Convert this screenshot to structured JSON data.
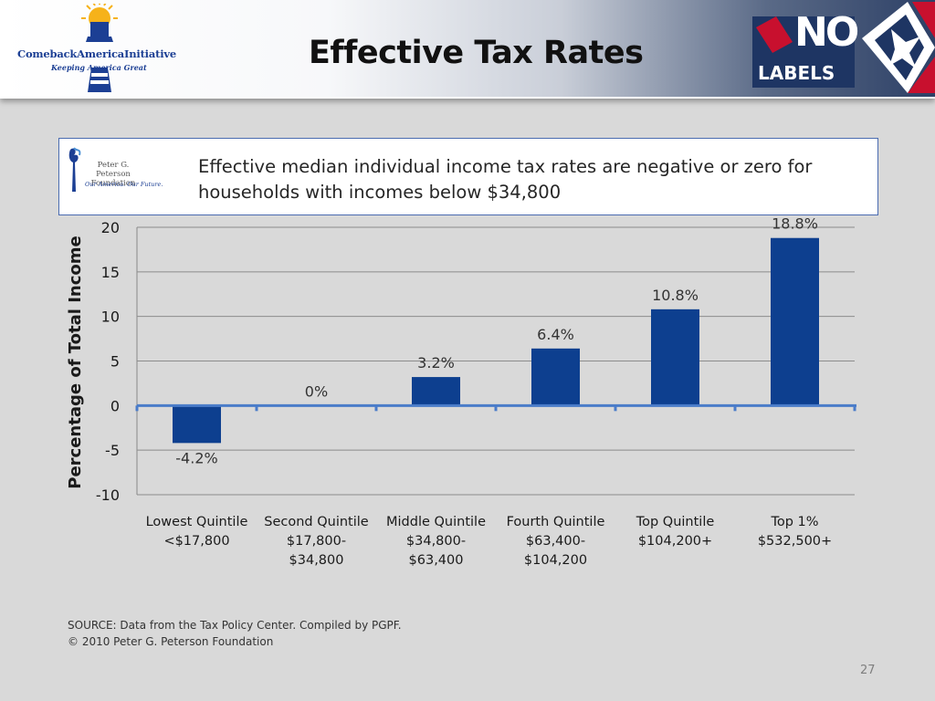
{
  "header": {
    "title": "Effective Tax Rates",
    "left_logo": {
      "name": "ComebackAmericaInitiative",
      "tagline": "Keeping America Great"
    },
    "right_logo": {
      "line1": "NO",
      "line2": "LABELS"
    }
  },
  "panel": {
    "logo": {
      "name": "Peter G. Peterson Foundation",
      "tagline": "Our America. Our Future."
    },
    "headline": "Effective median individual income tax rates are negative or zero for households with incomes below $34,800"
  },
  "chart_data": {
    "type": "bar",
    "title": "",
    "xlabel": "",
    "ylabel": "Percentage of Total Income",
    "ylim": [
      -10,
      20
    ],
    "yticks": [
      20,
      15,
      10,
      5,
      0,
      -5,
      -10
    ],
    "grid": true,
    "categories": [
      [
        "Lowest Quintile",
        "<$17,800"
      ],
      [
        "Second Quintile",
        "$17,800-",
        "$34,800"
      ],
      [
        "Middle Quintile",
        "$34,800-",
        "$63,400"
      ],
      [
        "Fourth Quintile",
        "$63,400-",
        "$104,200"
      ],
      [
        "Top Quintile",
        "$104,200+"
      ],
      [
        "Top 1%",
        "$532,500+"
      ]
    ],
    "values": [
      -4.2,
      0,
      3.2,
      6.4,
      10.8,
      18.8
    ],
    "data_labels": [
      "-4.2%",
      "0%",
      "3.2%",
      "6.4%",
      "10.8%",
      "18.8%"
    ],
    "bar_color": "#0d3f8f",
    "zero_line_color": "#4a7cc9"
  },
  "footer": {
    "source_line1": "SOURCE: Data from the Tax Policy Center. Compiled by PGPF.",
    "source_line2": "© 2010 Peter G. Peterson Foundation",
    "page_number": "27"
  }
}
